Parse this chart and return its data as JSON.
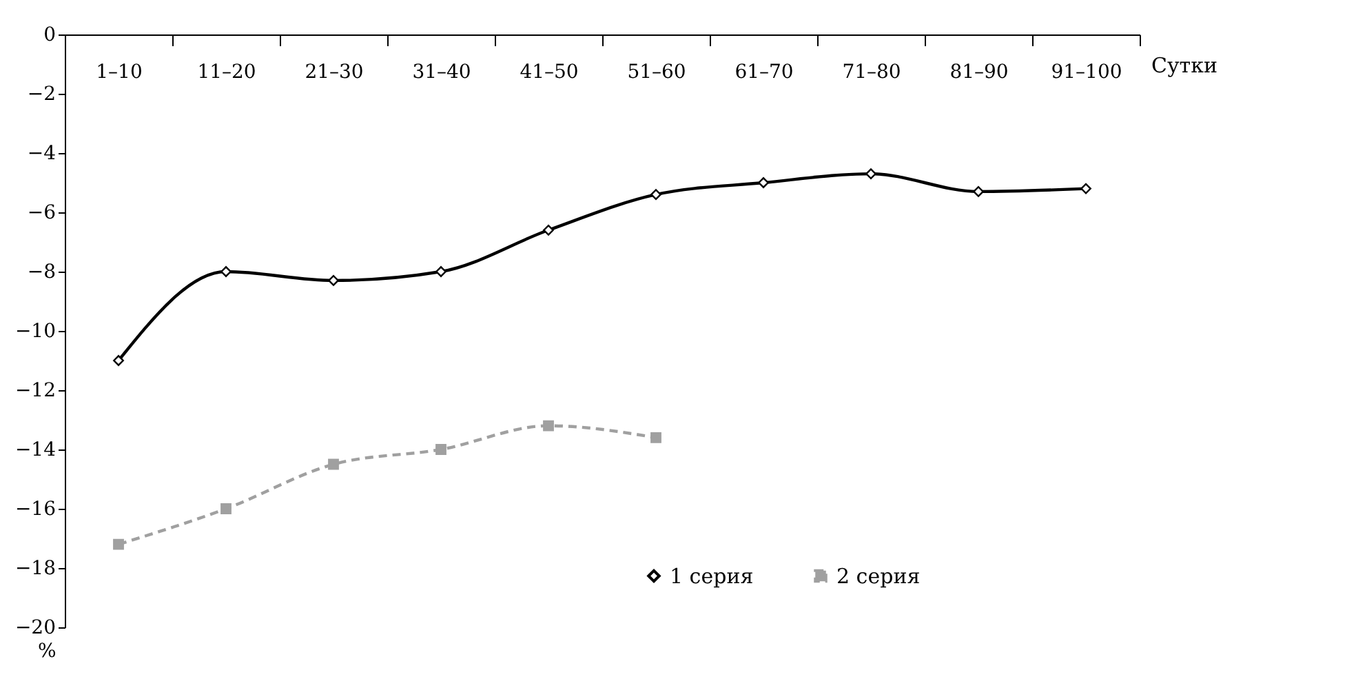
{
  "chart_data": {
    "type": "line",
    "xlabel": "Сутки",
    "ylabel": "%",
    "categories": [
      "1–10",
      "11–20",
      "21–30",
      "31–40",
      "41–50",
      "51–60",
      "61–70",
      "71–80",
      "81–90",
      "91–100"
    ],
    "series": [
      {
        "name": "1 серия",
        "color": "#000000",
        "marker": "diamond",
        "line_style": "solid",
        "values": [
          -11,
          -8,
          -8.3,
          -8,
          -6.6,
          -5.4,
          -5,
          -4.7,
          -5.3,
          -5.2
        ]
      },
      {
        "name": "2 серия",
        "color": "#a0a0a0",
        "marker": "square",
        "line_style": "dashed",
        "values": [
          -17.2,
          -16,
          -14.5,
          -14,
          -13.2,
          -13.6,
          null,
          null,
          null,
          null
        ]
      }
    ],
    "ylim": [
      -20,
      0
    ],
    "yticks": [
      -20,
      -18,
      -16,
      -14,
      -12,
      -10,
      -8,
      -6,
      -4,
      -2,
      0
    ],
    "grid": false,
    "legend": "bottom right"
  }
}
